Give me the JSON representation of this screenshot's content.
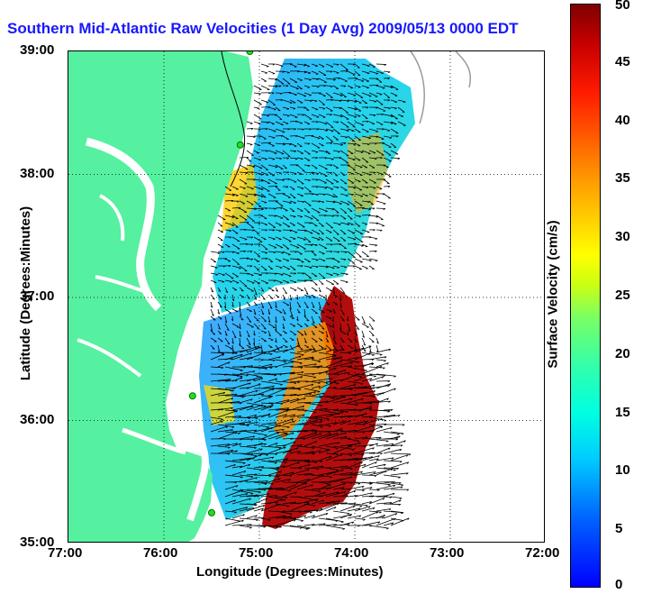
{
  "title": "Southern Mid-Atlantic Raw Velocities (1 Day Avg) 2009/05/13 0000 EDT",
  "axes": {
    "xlabel": "Longitude (Degrees:Minutes)",
    "ylabel": "Latitude (Degrees:Minutes)",
    "x_ticks": [
      "77:00",
      "76:00",
      "75:00",
      "74:00",
      "73:00",
      "72:00"
    ],
    "y_ticks": [
      "39:00",
      "38:00",
      "37:00",
      "36:00",
      "35:00"
    ],
    "xlim": [
      -77,
      -72
    ],
    "ylim": [
      35,
      39
    ],
    "grid": "dotted"
  },
  "colorbar": {
    "label": "Surface Velocity (cm/s)",
    "ticks": [
      "0",
      "5",
      "10",
      "15",
      "20",
      "25",
      "30",
      "35",
      "40",
      "45",
      "50"
    ],
    "range": [
      0,
      50
    ],
    "colormap": "jet"
  },
  "colors": {
    "land": "#55f0a0",
    "coast": "#000000",
    "grid": "#000000",
    "title": "#1818ff"
  },
  "sites": [
    {
      "lon": -75.1,
      "lat": 39.0
    },
    {
      "lon": -75.2,
      "lat": 38.24
    },
    {
      "lon": -75.7,
      "lat": 36.2
    },
    {
      "lon": -75.5,
      "lat": 35.25
    }
  ]
}
